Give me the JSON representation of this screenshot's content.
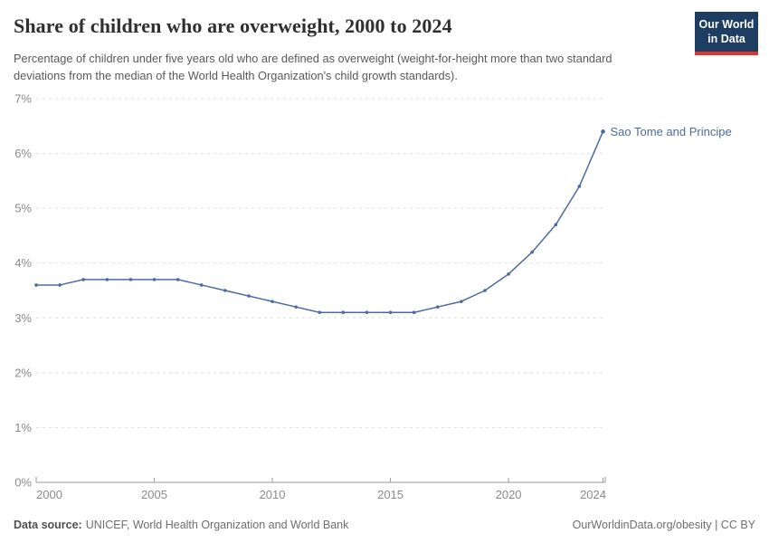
{
  "header": {
    "title": "Share of children who are overweight, 2000 to 2024",
    "subtitle": "Percentage of children under five years old who are defined as overweight (weight-for-height more than two standard deviations from the median of the World Health Organization's child growth standards).",
    "logo": {
      "line1": "Our World",
      "line2": "in Data",
      "bg_color": "#1d3d63",
      "accent_color": "#dc352c"
    }
  },
  "chart_data": {
    "type": "line",
    "title": "Share of children who are overweight, 2000 to 2024",
    "xlabel": "",
    "ylabel": "",
    "ylim": [
      0,
      7
    ],
    "grid": "horizontal-dashed",
    "legend_position": "end-of-line-label",
    "x": [
      2000,
      2001,
      2002,
      2003,
      2004,
      2005,
      2006,
      2007,
      2008,
      2009,
      2010,
      2011,
      2012,
      2013,
      2014,
      2015,
      2016,
      2017,
      2018,
      2019,
      2020,
      2021,
      2022,
      2023,
      2024
    ],
    "series": [
      {
        "name": "Sao Tome and Principe",
        "color": "#4d6ba3",
        "values": [
          3.6,
          3.6,
          3.7,
          3.7,
          3.7,
          3.7,
          3.7,
          3.6,
          3.5,
          3.4,
          3.3,
          3.2,
          3.1,
          3.1,
          3.1,
          3.1,
          3.1,
          3.2,
          3.3,
          3.5,
          3.8,
          4.2,
          4.7,
          5.4,
          6.4
        ]
      }
    ],
    "yticks": [
      "0%",
      "1%",
      "2%",
      "3%",
      "4%",
      "5%",
      "6%",
      "7%"
    ],
    "xticks": [
      2000,
      2005,
      2010,
      2015,
      2020,
      2024
    ],
    "colors": {
      "grid": "#dfdfdf",
      "axis": "#9a9a9a",
      "tick_text": "#8a8a8a"
    }
  },
  "footer": {
    "source_label": "Data source:",
    "source_text": "UNICEF, World Health Organization and World Bank",
    "link": "OurWorldinData.org/obesity | CC BY"
  }
}
